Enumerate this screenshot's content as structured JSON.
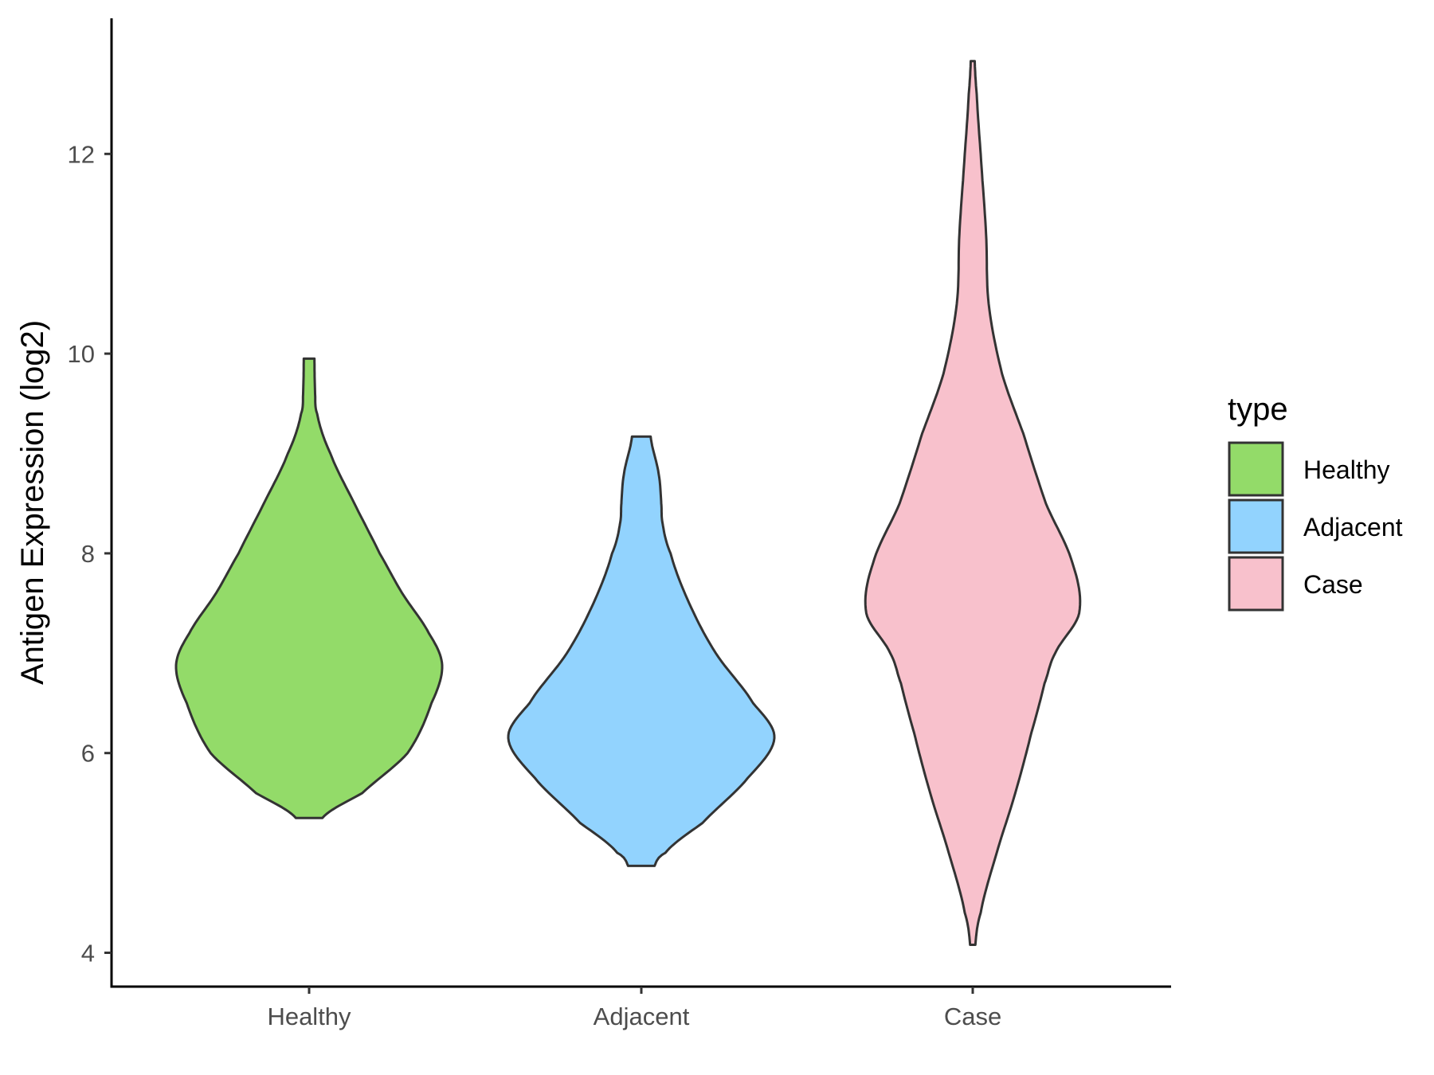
{
  "chart_data": {
    "type": "violin",
    "title": "",
    "xlabel": "",
    "ylabel": "Antigen Expression (log2)",
    "categories": [
      "Healthy",
      "Adjacent",
      "Case"
    ],
    "ylim": [
      3.7,
      13.6
    ],
    "yticks": [
      4,
      6,
      8,
      10,
      12
    ],
    "grid": false,
    "legend": {
      "title": "type",
      "placement": "right",
      "entries": [
        "Healthy",
        "Adjacent",
        "Case"
      ]
    },
    "colors": {
      "Healthy": "#93DB69",
      "Adjacent": "#92D3FE",
      "Case": "#F8C1CC",
      "outline": "#333333"
    },
    "series": [
      {
        "name": "Healthy",
        "min": 5.35,
        "max": 9.95,
        "density_profile": [
          [
            5.35,
            0.1
          ],
          [
            5.6,
            0.4
          ],
          [
            6.0,
            0.74
          ],
          [
            6.5,
            0.92
          ],
          [
            6.88,
            1.0
          ],
          [
            7.2,
            0.9
          ],
          [
            7.6,
            0.7
          ],
          [
            8.0,
            0.53
          ],
          [
            8.5,
            0.34
          ],
          [
            9.0,
            0.16
          ],
          [
            9.4,
            0.06
          ],
          [
            9.6,
            0.045
          ],
          [
            9.95,
            0.04
          ]
        ]
      },
      {
        "name": "Adjacent",
        "min": 4.87,
        "max": 9.17,
        "density_profile": [
          [
            4.87,
            0.1
          ],
          [
            5.0,
            0.18
          ],
          [
            5.3,
            0.46
          ],
          [
            5.75,
            0.8
          ],
          [
            6.15,
            1.0
          ],
          [
            6.5,
            0.84
          ],
          [
            7.0,
            0.56
          ],
          [
            7.5,
            0.36
          ],
          [
            8.0,
            0.22
          ],
          [
            8.3,
            0.16
          ],
          [
            8.5,
            0.15
          ],
          [
            8.8,
            0.13
          ],
          [
            9.17,
            0.07
          ]
        ]
      },
      {
        "name": "Case",
        "min": 4.08,
        "max": 12.93,
        "density_profile": [
          [
            4.08,
            0.02
          ],
          [
            4.4,
            0.06
          ],
          [
            5.0,
            0.18
          ],
          [
            5.6,
            0.32
          ],
          [
            6.2,
            0.44
          ],
          [
            6.7,
            0.54
          ],
          [
            7.0,
            0.62
          ],
          [
            7.4,
            0.8
          ],
          [
            7.9,
            0.75
          ],
          [
            8.5,
            0.55
          ],
          [
            9.2,
            0.38
          ],
          [
            9.8,
            0.22
          ],
          [
            10.5,
            0.12
          ],
          [
            11.2,
            0.1
          ],
          [
            12.0,
            0.06
          ],
          [
            12.6,
            0.03
          ],
          [
            12.93,
            0.015
          ]
        ]
      }
    ]
  }
}
